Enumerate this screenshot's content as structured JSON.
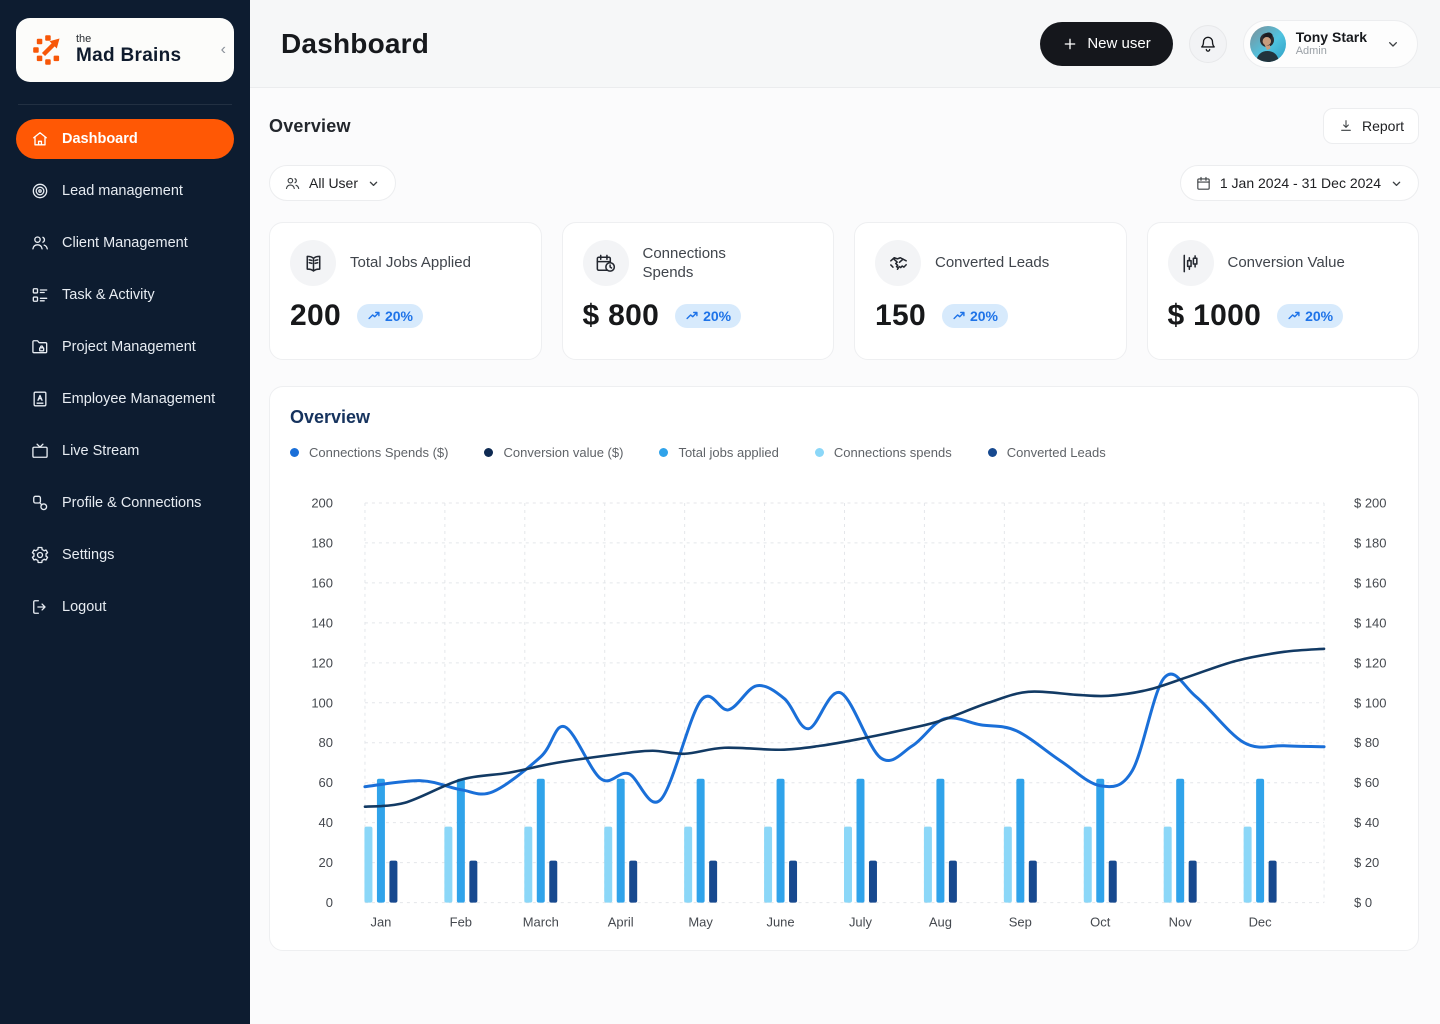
{
  "brand": {
    "prefix": "the",
    "name": "Mad Brains",
    "collapse": "‹"
  },
  "sidebar": {
    "items": [
      {
        "label": "Dashboard",
        "icon": "home",
        "active": true
      },
      {
        "label": "Lead management",
        "icon": "target",
        "active": false
      },
      {
        "label": "Client Management",
        "icon": "users",
        "active": false
      },
      {
        "label": "Task & Activity",
        "icon": "checklist",
        "active": false
      },
      {
        "label": "Project Management",
        "icon": "folder-lock",
        "active": false
      },
      {
        "label": "Employee Management",
        "icon": "id-card",
        "active": false
      },
      {
        "label": "Live Stream",
        "icon": "tv",
        "active": false
      },
      {
        "label": "Profile & Connections",
        "icon": "network",
        "active": false
      },
      {
        "label": "Settings",
        "icon": "gear",
        "active": false
      },
      {
        "label": "Logout",
        "icon": "logout",
        "active": false
      }
    ]
  },
  "header": {
    "title": "Dashboard",
    "new_user_label": "New user",
    "user": {
      "name": "Tony Stark",
      "role": "Admin"
    }
  },
  "overview": {
    "heading": "Overview",
    "report_label": "Report",
    "user_filter_label": "All User",
    "date_range": "1 Jan 2024 - 31 Dec 2024"
  },
  "stats": {
    "cards": [
      {
        "title": "Total Jobs Applied",
        "value": "200",
        "change": "20%"
      },
      {
        "title": "Connections Spends",
        "value": "$ 800",
        "change": "20%"
      },
      {
        "title": "Converted Leads",
        "value": "150",
        "change": "20%"
      },
      {
        "title": "Conversion Value",
        "value": "$ 1000",
        "change": "20%"
      }
    ],
    "badge_colors": {
      "background": "#D7EAFC",
      "text": "#1E73E8"
    }
  },
  "chart_data": {
    "type": "combo-bar-line",
    "title": "Overview",
    "categories": [
      "Jan",
      "Feb",
      "March",
      "April",
      "May",
      "June",
      "July",
      "Aug",
      "Sep",
      "Oct",
      "Nov",
      "Dec"
    ],
    "left_axis": {
      "min": 0,
      "max": 200,
      "step": 20
    },
    "right_axis": {
      "min": 0,
      "max": 200,
      "step": 20,
      "prefix": "$ "
    },
    "grid": true,
    "legend_position": "top-left",
    "legend": [
      {
        "label": "Connections Spends ($)",
        "color": "#1A6FD8"
      },
      {
        "label": "Conversion value ($)",
        "color": "#0E2A52"
      },
      {
        "label": "Total jobs applied",
        "color": "#30A3EA"
      },
      {
        "label": "Connections spends",
        "color": "#8BD7F8"
      },
      {
        "label": "Converted Leads",
        "color": "#17498F"
      }
    ],
    "bar_series": [
      {
        "name": "Connections spends",
        "color": "#8BD7F8",
        "values": [
          38,
          38,
          38,
          38,
          38,
          38,
          38,
          38,
          38,
          38,
          38,
          38
        ]
      },
      {
        "name": "Total jobs applied",
        "color": "#30A3EA",
        "values": [
          62,
          62,
          62,
          62,
          62,
          62,
          62,
          62,
          62,
          62,
          62,
          62
        ]
      },
      {
        "name": "Converted Leads",
        "color": "#17498F",
        "values": [
          21,
          21,
          21,
          21,
          21,
          21,
          21,
          21,
          21,
          21,
          21,
          21
        ]
      }
    ],
    "line_series": [
      {
        "name": "Connections Spends ($)",
        "color": "#1A6FD8",
        "width": 3,
        "points": [
          [
            -0.2,
            58
          ],
          [
            0.5,
            61
          ],
          [
            1,
            56.5
          ],
          [
            1.4,
            55.5
          ],
          [
            2,
            73
          ],
          [
            2.3,
            88
          ],
          [
            2.75,
            62
          ],
          [
            3.1,
            64.5
          ],
          [
            3.5,
            51.5
          ],
          [
            4,
            101
          ],
          [
            4.35,
            96.5
          ],
          [
            4.7,
            108.5
          ],
          [
            5.05,
            102
          ],
          [
            5.35,
            87
          ],
          [
            5.75,
            105
          ],
          [
            6.25,
            72.5
          ],
          [
            6.65,
            78.5
          ],
          [
            7.05,
            92
          ],
          [
            7.5,
            89
          ],
          [
            7.95,
            86
          ],
          [
            8.5,
            71
          ],
          [
            9,
            58.5
          ],
          [
            9.4,
            66
          ],
          [
            9.8,
            112.5
          ],
          [
            10.2,
            103
          ],
          [
            10.8,
            80
          ],
          [
            11.3,
            78.5
          ],
          [
            11.8,
            78
          ]
        ]
      },
      {
        "name": "Conversion value ($)",
        "color": "#123A64",
        "width": 2.6,
        "points": [
          [
            -0.2,
            48
          ],
          [
            0.3,
            50
          ],
          [
            1,
            61.5
          ],
          [
            1.6,
            65
          ],
          [
            2.2,
            70
          ],
          [
            3,
            74.5
          ],
          [
            3.4,
            76
          ],
          [
            3.8,
            74.5
          ],
          [
            4.3,
            77.5
          ],
          [
            5,
            76.5
          ],
          [
            5.5,
            78.5
          ],
          [
            6,
            82
          ],
          [
            6.6,
            87
          ],
          [
            7,
            91
          ],
          [
            7.6,
            100
          ],
          [
            8.1,
            105.5
          ],
          [
            8.7,
            104
          ],
          [
            9.1,
            103.5
          ],
          [
            9.6,
            106.5
          ],
          [
            10.1,
            113
          ],
          [
            10.7,
            121
          ],
          [
            11.3,
            125.5
          ],
          [
            11.8,
            127
          ]
        ]
      }
    ]
  }
}
